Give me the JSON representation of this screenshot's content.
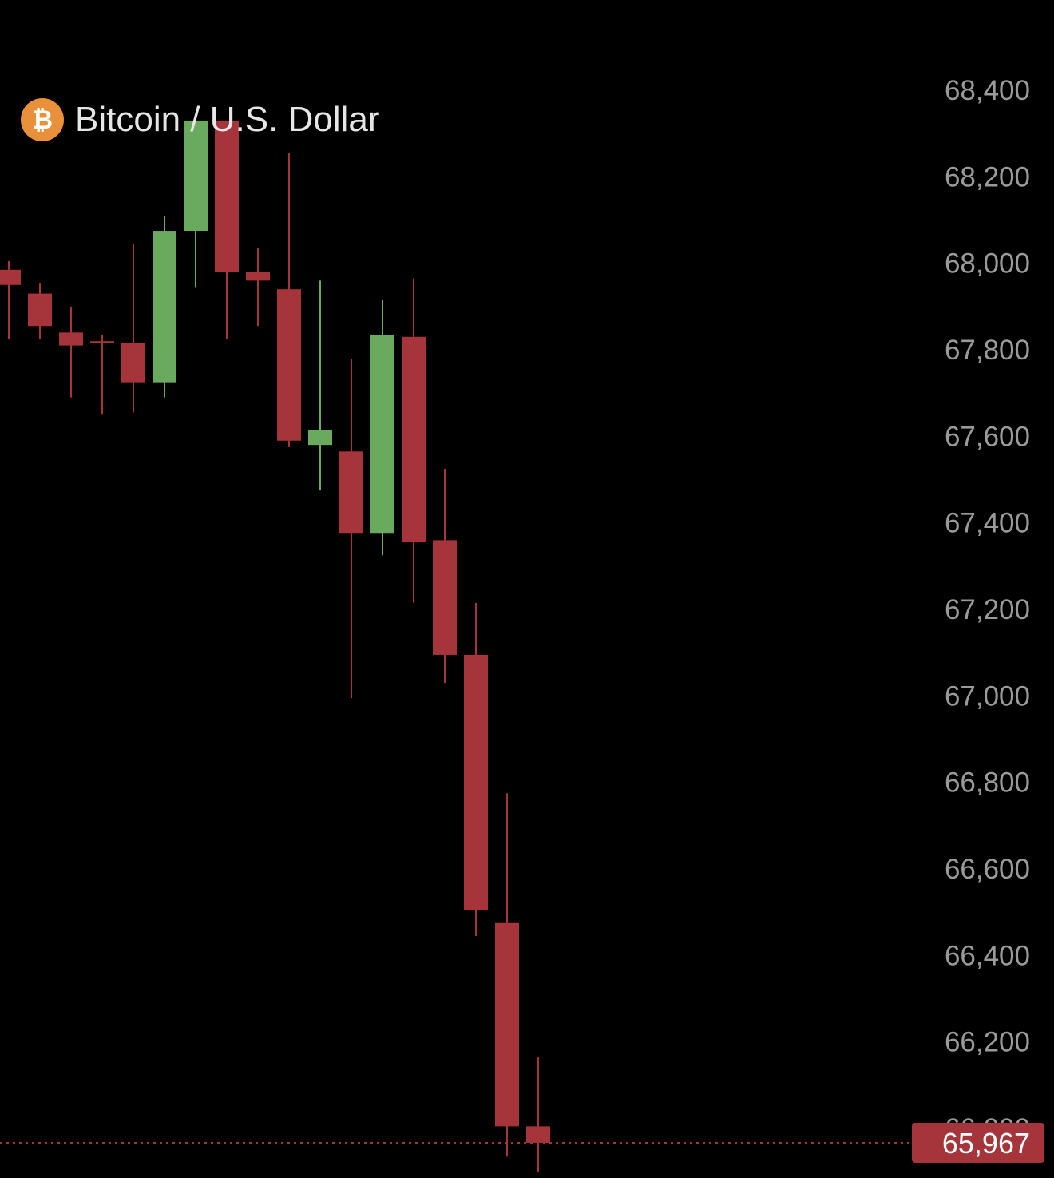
{
  "header": {
    "title": "Bitcoin / U.S. Dollar",
    "icon": "bitcoin-icon",
    "icon_glyph": "₿"
  },
  "colors": {
    "background": "#000000",
    "up": "#6aaa5e",
    "down": "#a5353b",
    "axis_text": "#9a9a9a",
    "bitcoin_orange": "#e8913a",
    "last_price_line": "#a5353b"
  },
  "chart_data": {
    "type": "candlestick",
    "title": "Bitcoin / U.S. Dollar",
    "ylabel": "",
    "xlabel": "",
    "ylim": [
      65880,
      68440
    ],
    "y_ticks": [
      {
        "value": 68400,
        "label": "68,400"
      },
      {
        "value": 68200,
        "label": "68,200"
      },
      {
        "value": 68000,
        "label": "68,000"
      },
      {
        "value": 67800,
        "label": "67,800"
      },
      {
        "value": 67600,
        "label": "67,600"
      },
      {
        "value": 67400,
        "label": "67,400"
      },
      {
        "value": 67200,
        "label": "67,200"
      },
      {
        "value": 67000,
        "label": "67,000"
      },
      {
        "value": 66800,
        "label": "66,800"
      },
      {
        "value": 66600,
        "label": "66,600"
      },
      {
        "value": 66400,
        "label": "66,400"
      },
      {
        "value": 66200,
        "label": "66,200"
      },
      {
        "value": 66000,
        "label": "66,000"
      }
    ],
    "grid": false,
    "legend": "none",
    "last_price": {
      "value": 65967,
      "label": "65,967"
    },
    "candles": [
      {
        "open": 67985,
        "high": 68005,
        "low": 67825,
        "close": 67950
      },
      {
        "open": 67930,
        "high": 67955,
        "low": 67825,
        "close": 67855
      },
      {
        "open": 67840,
        "high": 67900,
        "low": 67690,
        "close": 67810
      },
      {
        "open": 67820,
        "high": 67835,
        "low": 67650,
        "close": 67815
      },
      {
        "open": 67815,
        "high": 68045,
        "low": 67655,
        "close": 67725
      },
      {
        "open": 67725,
        "high": 68110,
        "low": 67690,
        "close": 68075
      },
      {
        "open": 68075,
        "high": 68330,
        "low": 67945,
        "close": 68330
      },
      {
        "open": 68330,
        "high": 68330,
        "low": 67825,
        "close": 67980
      },
      {
        "open": 67980,
        "high": 68035,
        "low": 67855,
        "close": 67960
      },
      {
        "open": 67940,
        "high": 68255,
        "low": 67575,
        "close": 67590
      },
      {
        "open": 67580,
        "high": 67960,
        "low": 67475,
        "close": 67615
      },
      {
        "open": 67565,
        "high": 67780,
        "low": 66995,
        "close": 67375
      },
      {
        "open": 67375,
        "high": 67915,
        "low": 67325,
        "close": 67835
      },
      {
        "open": 67830,
        "high": 67965,
        "low": 67215,
        "close": 67355
      },
      {
        "open": 67360,
        "high": 67525,
        "low": 67030,
        "close": 67095
      },
      {
        "open": 67095,
        "high": 67215,
        "low": 66445,
        "close": 66505
      },
      {
        "open": 66475,
        "high": 66775,
        "low": 65935,
        "close": 66005
      },
      {
        "open": 66005,
        "high": 66165,
        "low": 65900,
        "close": 65967
      }
    ]
  }
}
